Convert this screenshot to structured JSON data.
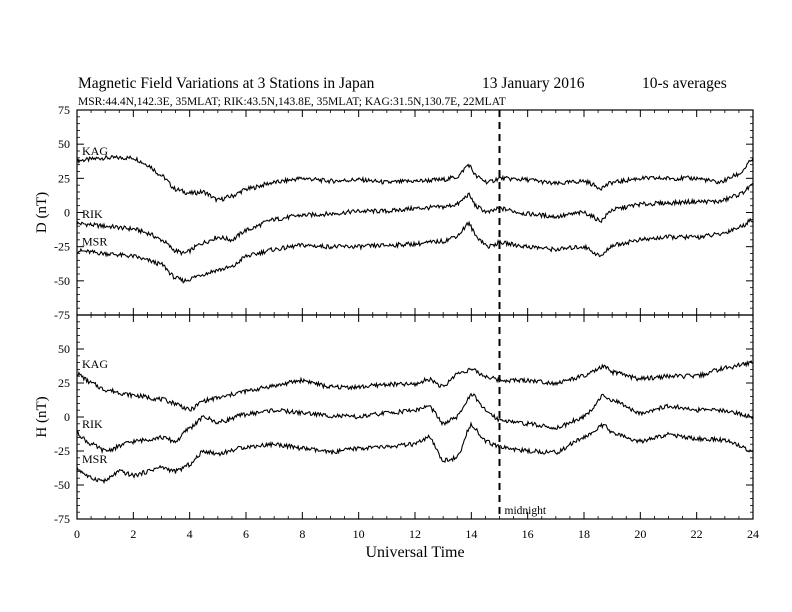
{
  "header": {
    "title": "Magnetic Field Variations at 3 Stations in Japan",
    "date": "13 January 2016",
    "averaging": "10-s averages",
    "stations_line": "MSR:44.4N,142.3E, 35MLAT;  RIK:43.5N,143.8E, 35MLAT;  KAG:31.5N,130.7E, 22MLAT"
  },
  "chart_data": [
    {
      "type": "line",
      "ylabel": "D (nT)",
      "ylim": [
        -75,
        75
      ],
      "yticks": [
        -75,
        -50,
        -25,
        0,
        25,
        50,
        75
      ],
      "xlim": [
        0,
        24
      ],
      "xticks": [
        0,
        2,
        4,
        6,
        8,
        10,
        12,
        14,
        16,
        18,
        20,
        22,
        24
      ],
      "series": [
        {
          "name": "KAG",
          "x": [
            0,
            1,
            2,
            2.5,
            3,
            3.5,
            4,
            4.5,
            5,
            5.5,
            6,
            7,
            8,
            9,
            10,
            11,
            12,
            13,
            13.5,
            13.9,
            14.2,
            14.6,
            15,
            16,
            17,
            18,
            18.6,
            19,
            20,
            21,
            22,
            22.8,
            23.5,
            24
          ],
          "values": [
            38,
            40,
            40,
            35,
            27,
            17,
            14,
            15,
            9,
            12,
            17,
            22,
            25,
            23,
            24,
            22,
            23,
            24,
            26,
            35,
            26,
            22,
            25,
            24,
            21,
            23,
            18,
            22,
            25,
            25,
            25,
            22,
            28,
            39
          ]
        },
        {
          "name": "RIK",
          "x": [
            0,
            1,
            2,
            2.5,
            3,
            3.5,
            3.8,
            4.5,
            5,
            5.5,
            6,
            7,
            8,
            9,
            10,
            11,
            12,
            13,
            13.5,
            13.9,
            14.2,
            14.6,
            15,
            16,
            17,
            18,
            18.6,
            19,
            20,
            21,
            22,
            22.8,
            23.5,
            24
          ],
          "values": [
            -8,
            -10,
            -12,
            -15,
            -20,
            -28,
            -30,
            -22,
            -18,
            -20,
            -13,
            -5,
            -2,
            -1,
            1,
            1,
            3,
            4,
            6,
            13,
            4,
            0,
            3,
            -1,
            -3,
            0,
            -6,
            2,
            6,
            7,
            8,
            8,
            13,
            20
          ]
        },
        {
          "name": "MSR",
          "x": [
            0,
            1,
            2,
            2.5,
            3,
            3.5,
            3.8,
            4.5,
            5,
            5.5,
            6,
            7,
            8,
            9,
            10,
            11,
            12,
            13,
            13.5,
            13.9,
            14.2,
            14.6,
            15,
            16,
            17,
            18,
            18.6,
            19,
            20,
            21,
            22,
            22.8,
            23.5,
            24
          ],
          "values": [
            -28,
            -30,
            -32,
            -35,
            -38,
            -48,
            -50,
            -45,
            -42,
            -40,
            -32,
            -27,
            -24,
            -25,
            -25,
            -24,
            -23,
            -21,
            -17,
            -8,
            -18,
            -25,
            -22,
            -25,
            -27,
            -25,
            -32,
            -24,
            -20,
            -18,
            -18,
            -16,
            -11,
            -5
          ]
        }
      ]
    },
    {
      "type": "line",
      "ylabel": "H (nT)",
      "ylim": [
        -75,
        75
      ],
      "yticks": [
        -75,
        -50,
        -25,
        0,
        25,
        50,
        75
      ],
      "xlim": [
        0,
        24
      ],
      "xticks": [
        0,
        2,
        4,
        6,
        8,
        10,
        12,
        14,
        16,
        18,
        20,
        22,
        24
      ],
      "series": [
        {
          "name": "KAG",
          "x": [
            0,
            0.5,
            1,
            2,
            3,
            3.5,
            4,
            4.5,
            5,
            6,
            7,
            8,
            9,
            10,
            11,
            12,
            12.5,
            13,
            13.5,
            14,
            14.5,
            15,
            16,
            17,
            18,
            18.7,
            19,
            20,
            21,
            22,
            23,
            24
          ],
          "values": [
            32,
            25,
            20,
            16,
            13,
            10,
            5,
            12,
            14,
            19,
            23,
            27,
            22,
            22,
            24,
            24,
            28,
            22,
            32,
            35,
            30,
            27,
            27,
            25,
            30,
            37,
            33,
            28,
            30,
            30,
            36,
            40
          ]
        },
        {
          "name": "RIK",
          "x": [
            0,
            0.5,
            1,
            2,
            3,
            3.5,
            4,
            4.5,
            5,
            6,
            7,
            8,
            9,
            10,
            11,
            12,
            12.5,
            13,
            13.5,
            14,
            14.5,
            15,
            16,
            17,
            18,
            18.7,
            19,
            20,
            21,
            22,
            23,
            24
          ],
          "values": [
            -12,
            -20,
            -25,
            -18,
            -15,
            -18,
            -8,
            0,
            -4,
            2,
            5,
            3,
            1,
            0,
            3,
            5,
            8,
            -5,
            0,
            17,
            5,
            -2,
            -5,
            -8,
            0,
            16,
            12,
            3,
            8,
            5,
            5,
            0
          ]
        },
        {
          "name": "MSR",
          "x": [
            0,
            0.5,
            1,
            1.5,
            2,
            3,
            3.5,
            4,
            4.5,
            5,
            6,
            7,
            8,
            9,
            10,
            11,
            12,
            12.5,
            13,
            13.5,
            14,
            14.5,
            15,
            16,
            17,
            18,
            18.7,
            19,
            20,
            21,
            22,
            23,
            24
          ],
          "values": [
            -38,
            -45,
            -47,
            -40,
            -43,
            -37,
            -40,
            -35,
            -25,
            -27,
            -22,
            -20,
            -23,
            -26,
            -23,
            -22,
            -20,
            -15,
            -32,
            -30,
            -5,
            -18,
            -22,
            -25,
            -26,
            -15,
            -6,
            -12,
            -18,
            -13,
            -16,
            -17,
            -25
          ]
        }
      ]
    }
  ],
  "annotation": {
    "label": "midnight",
    "x": 15
  },
  "xlabel": "Universal Time"
}
